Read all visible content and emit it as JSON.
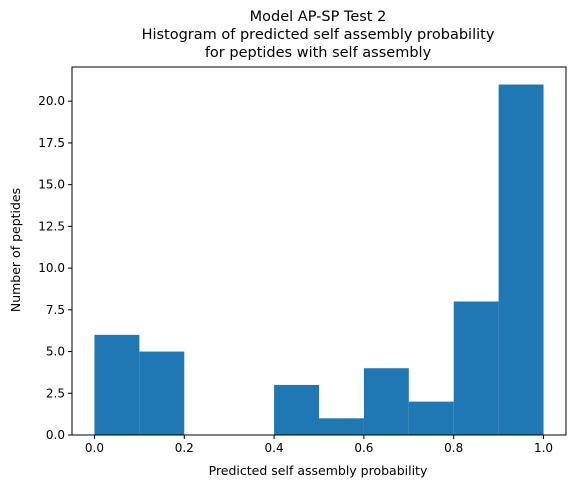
{
  "chart_data": {
    "type": "bar",
    "title_lines": [
      "Model AP-SP Test 2",
      "Histogram of predicted self assembly probability",
      "for peptides with self assembly"
    ],
    "xlabel": "Predicted self assembly probability",
    "ylabel": "Number of peptides",
    "bin_edges": [
      0.0,
      0.1,
      0.2,
      0.3,
      0.4,
      0.5,
      0.6,
      0.7,
      0.8,
      0.9,
      1.0
    ],
    "values": [
      6,
      5,
      0,
      0,
      3,
      1,
      4,
      2,
      8,
      21
    ],
    "xlim": [
      -0.05,
      1.05
    ],
    "ylim": [
      0,
      22.05
    ],
    "xticks": [
      0.0,
      0.2,
      0.4,
      0.6,
      0.8,
      1.0
    ],
    "xtick_labels": [
      "0.0",
      "0.2",
      "0.4",
      "0.6",
      "0.8",
      "1.0"
    ],
    "yticks": [
      0.0,
      2.5,
      5.0,
      7.5,
      10.0,
      12.5,
      15.0,
      17.5,
      20.0
    ],
    "ytick_labels": [
      "0.0",
      "2.5",
      "5.0",
      "7.5",
      "10.0",
      "12.5",
      "15.0",
      "17.5",
      "20.0"
    ],
    "bar_color": "#1f77b4",
    "grid": false
  }
}
